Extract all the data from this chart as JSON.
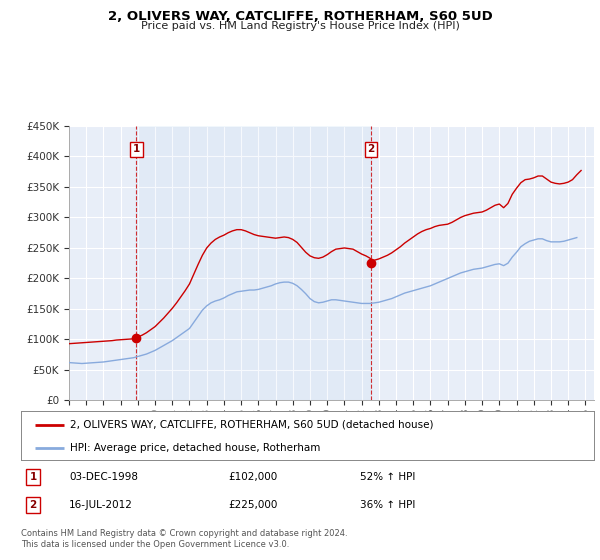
{
  "title": "2, OLIVERS WAY, CATCLIFFE, ROTHERHAM, S60 5UD",
  "subtitle": "Price paid vs. HM Land Registry's House Price Index (HPI)",
  "ylim": [
    0,
    450000
  ],
  "yticks": [
    0,
    50000,
    100000,
    150000,
    200000,
    250000,
    300000,
    350000,
    400000,
    450000
  ],
  "ytick_labels": [
    "£0",
    "£50K",
    "£100K",
    "£150K",
    "£200K",
    "£250K",
    "£300K",
    "£350K",
    "£400K",
    "£450K"
  ],
  "xlim_start": 1995.0,
  "xlim_end": 2025.5,
  "background_color": "#ffffff",
  "plot_bg_color": "#e8eef8",
  "grid_color": "#ffffff",
  "sale1_x": 1998.92,
  "sale1_y": 102000,
  "sale1_label": "1",
  "sale1_date": "03-DEC-1998",
  "sale1_price": "£102,000",
  "sale1_hpi": "52% ↑ HPI",
  "sale2_x": 2012.54,
  "sale2_y": 225000,
  "sale2_label": "2",
  "sale2_date": "16-JUL-2012",
  "sale2_price": "£225,000",
  "sale2_hpi": "36% ↑ HPI",
  "legend_label_property": "2, OLIVERS WAY, CATCLIFFE, ROTHERHAM, S60 5UD (detached house)",
  "legend_label_hpi": "HPI: Average price, detached house, Rotherham",
  "property_color": "#cc0000",
  "hpi_color": "#88aadd",
  "footer_text": "Contains HM Land Registry data © Crown copyright and database right 2024.\nThis data is licensed under the Open Government Licence v3.0.",
  "hpi_data": [
    [
      1995.0,
      62000
    ],
    [
      1995.25,
      61500
    ],
    [
      1995.5,
      61000
    ],
    [
      1995.75,
      60500
    ],
    [
      1996.0,
      61000
    ],
    [
      1996.25,
      61500
    ],
    [
      1996.5,
      62000
    ],
    [
      1996.75,
      62500
    ],
    [
      1997.0,
      63000
    ],
    [
      1997.25,
      64000
    ],
    [
      1997.5,
      65000
    ],
    [
      1997.75,
      66000
    ],
    [
      1998.0,
      67000
    ],
    [
      1998.25,
      68000
    ],
    [
      1998.5,
      69000
    ],
    [
      1998.75,
      70000
    ],
    [
      1999.0,
      72000
    ],
    [
      1999.25,
      74000
    ],
    [
      1999.5,
      76000
    ],
    [
      1999.75,
      79000
    ],
    [
      2000.0,
      82000
    ],
    [
      2000.25,
      86000
    ],
    [
      2000.5,
      90000
    ],
    [
      2000.75,
      94000
    ],
    [
      2001.0,
      98000
    ],
    [
      2001.25,
      103000
    ],
    [
      2001.5,
      108000
    ],
    [
      2001.75,
      113000
    ],
    [
      2002.0,
      118000
    ],
    [
      2002.25,
      128000
    ],
    [
      2002.5,
      138000
    ],
    [
      2002.75,
      148000
    ],
    [
      2003.0,
      155000
    ],
    [
      2003.25,
      160000
    ],
    [
      2003.5,
      163000
    ],
    [
      2003.75,
      165000
    ],
    [
      2004.0,
      168000
    ],
    [
      2004.25,
      172000
    ],
    [
      2004.5,
      175000
    ],
    [
      2004.75,
      178000
    ],
    [
      2005.0,
      179000
    ],
    [
      2005.25,
      180000
    ],
    [
      2005.5,
      181000
    ],
    [
      2005.75,
      181000
    ],
    [
      2006.0,
      182000
    ],
    [
      2006.25,
      184000
    ],
    [
      2006.5,
      186000
    ],
    [
      2006.75,
      188000
    ],
    [
      2007.0,
      191000
    ],
    [
      2007.25,
      193000
    ],
    [
      2007.5,
      194000
    ],
    [
      2007.75,
      194000
    ],
    [
      2008.0,
      192000
    ],
    [
      2008.25,
      188000
    ],
    [
      2008.5,
      182000
    ],
    [
      2008.75,
      175000
    ],
    [
      2009.0,
      167000
    ],
    [
      2009.25,
      162000
    ],
    [
      2009.5,
      160000
    ],
    [
      2009.75,
      161000
    ],
    [
      2010.0,
      163000
    ],
    [
      2010.25,
      165000
    ],
    [
      2010.5,
      165000
    ],
    [
      2010.75,
      164000
    ],
    [
      2011.0,
      163000
    ],
    [
      2011.25,
      162000
    ],
    [
      2011.5,
      161000
    ],
    [
      2011.75,
      160000
    ],
    [
      2012.0,
      159000
    ],
    [
      2012.25,
      159000
    ],
    [
      2012.5,
      159000
    ],
    [
      2012.75,
      160000
    ],
    [
      2013.0,
      161000
    ],
    [
      2013.25,
      163000
    ],
    [
      2013.5,
      165000
    ],
    [
      2013.75,
      167000
    ],
    [
      2014.0,
      170000
    ],
    [
      2014.25,
      173000
    ],
    [
      2014.5,
      176000
    ],
    [
      2014.75,
      178000
    ],
    [
      2015.0,
      180000
    ],
    [
      2015.25,
      182000
    ],
    [
      2015.5,
      184000
    ],
    [
      2015.75,
      186000
    ],
    [
      2016.0,
      188000
    ],
    [
      2016.25,
      191000
    ],
    [
      2016.5,
      194000
    ],
    [
      2016.75,
      197000
    ],
    [
      2017.0,
      200000
    ],
    [
      2017.25,
      203000
    ],
    [
      2017.5,
      206000
    ],
    [
      2017.75,
      209000
    ],
    [
      2018.0,
      211000
    ],
    [
      2018.25,
      213000
    ],
    [
      2018.5,
      215000
    ],
    [
      2018.75,
      216000
    ],
    [
      2019.0,
      217000
    ],
    [
      2019.25,
      219000
    ],
    [
      2019.5,
      221000
    ],
    [
      2019.75,
      223000
    ],
    [
      2020.0,
      224000
    ],
    [
      2020.25,
      221000
    ],
    [
      2020.5,
      225000
    ],
    [
      2020.75,
      235000
    ],
    [
      2021.0,
      243000
    ],
    [
      2021.25,
      252000
    ],
    [
      2021.5,
      257000
    ],
    [
      2021.75,
      261000
    ],
    [
      2022.0,
      263000
    ],
    [
      2022.25,
      265000
    ],
    [
      2022.5,
      265000
    ],
    [
      2022.75,
      262000
    ],
    [
      2023.0,
      260000
    ],
    [
      2023.25,
      260000
    ],
    [
      2023.5,
      260000
    ],
    [
      2023.75,
      261000
    ],
    [
      2024.0,
      263000
    ],
    [
      2024.25,
      265000
    ],
    [
      2024.5,
      267000
    ]
  ],
  "property_data": [
    [
      1995.0,
      93000
    ],
    [
      1995.25,
      93500
    ],
    [
      1995.5,
      94000
    ],
    [
      1995.75,
      94500
    ],
    [
      1996.0,
      95000
    ],
    [
      1996.25,
      95500
    ],
    [
      1996.5,
      96000
    ],
    [
      1996.75,
      96500
    ],
    [
      1997.0,
      97000
    ],
    [
      1997.25,
      97500
    ],
    [
      1997.5,
      98000
    ],
    [
      1997.75,
      99000
    ],
    [
      1998.0,
      99500
    ],
    [
      1998.25,
      100000
    ],
    [
      1998.5,
      100500
    ],
    [
      1998.75,
      101000
    ],
    [
      1998.92,
      102000
    ],
    [
      1999.0,
      104000
    ],
    [
      1999.25,
      107000
    ],
    [
      1999.5,
      111000
    ],
    [
      1999.75,
      116000
    ],
    [
      2000.0,
      121000
    ],
    [
      2000.25,
      128000
    ],
    [
      2000.5,
      135000
    ],
    [
      2000.75,
      143000
    ],
    [
      2001.0,
      151000
    ],
    [
      2001.25,
      160000
    ],
    [
      2001.5,
      170000
    ],
    [
      2001.75,
      180000
    ],
    [
      2002.0,
      191000
    ],
    [
      2002.25,
      207000
    ],
    [
      2002.5,
      223000
    ],
    [
      2002.75,
      238000
    ],
    [
      2003.0,
      250000
    ],
    [
      2003.25,
      258000
    ],
    [
      2003.5,
      264000
    ],
    [
      2003.75,
      268000
    ],
    [
      2004.0,
      271000
    ],
    [
      2004.25,
      275000
    ],
    [
      2004.5,
      278000
    ],
    [
      2004.75,
      280000
    ],
    [
      2005.0,
      280000
    ],
    [
      2005.25,
      278000
    ],
    [
      2005.5,
      275000
    ],
    [
      2005.75,
      272000
    ],
    [
      2006.0,
      270000
    ],
    [
      2006.25,
      269000
    ],
    [
      2006.5,
      268000
    ],
    [
      2006.75,
      267000
    ],
    [
      2007.0,
      266000
    ],
    [
      2007.25,
      267000
    ],
    [
      2007.5,
      268000
    ],
    [
      2007.75,
      267000
    ],
    [
      2008.0,
      264000
    ],
    [
      2008.25,
      259000
    ],
    [
      2008.5,
      251000
    ],
    [
      2008.75,
      243000
    ],
    [
      2009.0,
      237000
    ],
    [
      2009.25,
      234000
    ],
    [
      2009.5,
      233000
    ],
    [
      2009.75,
      235000
    ],
    [
      2010.0,
      239000
    ],
    [
      2010.25,
      244000
    ],
    [
      2010.5,
      248000
    ],
    [
      2010.75,
      249000
    ],
    [
      2011.0,
      250000
    ],
    [
      2011.25,
      249000
    ],
    [
      2011.5,
      248000
    ],
    [
      2011.75,
      244000
    ],
    [
      2012.0,
      240000
    ],
    [
      2012.25,
      237000
    ],
    [
      2012.5,
      233000
    ],
    [
      2012.54,
      225000
    ],
    [
      2012.75,
      230000
    ],
    [
      2013.0,
      232000
    ],
    [
      2013.25,
      235000
    ],
    [
      2013.5,
      238000
    ],
    [
      2013.75,
      242000
    ],
    [
      2014.0,
      247000
    ],
    [
      2014.25,
      252000
    ],
    [
      2014.5,
      258000
    ],
    [
      2014.75,
      263000
    ],
    [
      2015.0,
      268000
    ],
    [
      2015.25,
      273000
    ],
    [
      2015.5,
      277000
    ],
    [
      2015.75,
      280000
    ],
    [
      2016.0,
      282000
    ],
    [
      2016.25,
      285000
    ],
    [
      2016.5,
      287000
    ],
    [
      2016.75,
      288000
    ],
    [
      2017.0,
      289000
    ],
    [
      2017.25,
      292000
    ],
    [
      2017.5,
      296000
    ],
    [
      2017.75,
      300000
    ],
    [
      2018.0,
      303000
    ],
    [
      2018.25,
      305000
    ],
    [
      2018.5,
      307000
    ],
    [
      2018.75,
      308000
    ],
    [
      2019.0,
      309000
    ],
    [
      2019.25,
      312000
    ],
    [
      2019.5,
      316000
    ],
    [
      2019.75,
      320000
    ],
    [
      2020.0,
      322000
    ],
    [
      2020.25,
      316000
    ],
    [
      2020.5,
      323000
    ],
    [
      2020.75,
      338000
    ],
    [
      2021.0,
      348000
    ],
    [
      2021.25,
      357000
    ],
    [
      2021.5,
      362000
    ],
    [
      2021.75,
      363000
    ],
    [
      2022.0,
      365000
    ],
    [
      2022.25,
      368000
    ],
    [
      2022.5,
      368000
    ],
    [
      2022.75,
      363000
    ],
    [
      2023.0,
      358000
    ],
    [
      2023.25,
      356000
    ],
    [
      2023.5,
      355000
    ],
    [
      2023.75,
      356000
    ],
    [
      2024.0,
      358000
    ],
    [
      2024.25,
      362000
    ],
    [
      2024.5,
      370000
    ],
    [
      2024.75,
      377000
    ]
  ]
}
